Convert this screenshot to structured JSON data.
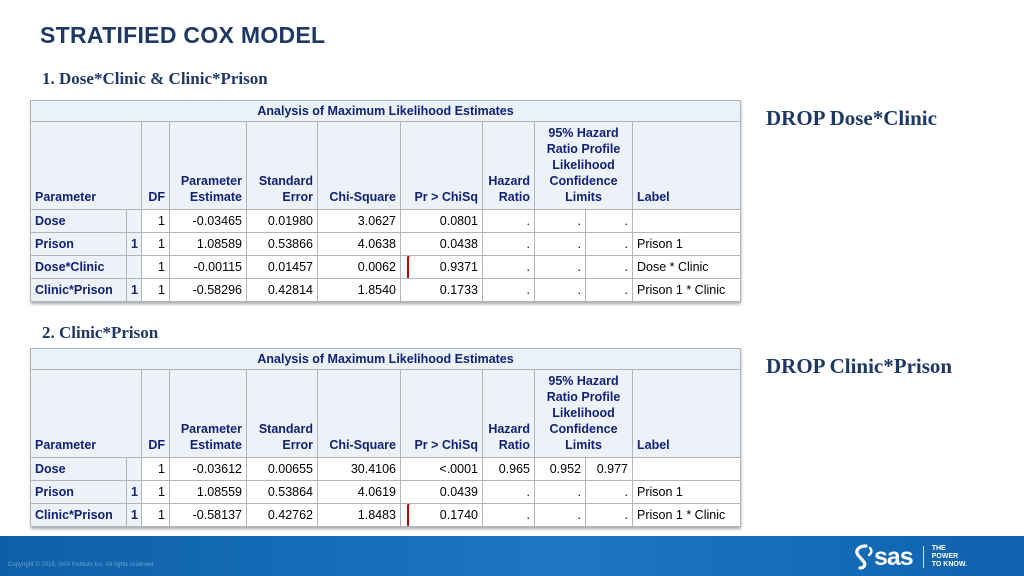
{
  "title": "STRATIFIED COX MODEL",
  "section1": {
    "heading": "1. Dose*Clinic & Clinic*Prison",
    "drop_note": "DROP Dose*Clinic",
    "caption": "Analysis of Maximum Likelihood Estimates",
    "headers": {
      "parameter": "Parameter",
      "df": "DF",
      "estimate": "Parameter Estimate",
      "stderr": "Standard Error",
      "chisq": "Chi-Square",
      "prob": "Pr > ChiSq",
      "hr": "Hazard Ratio",
      "ci": "95% Hazard Ratio Profile Likelihood Confidence Limits",
      "label": "Label"
    },
    "rows": [
      {
        "param": "Dose",
        "level": "",
        "df": "1",
        "estimate": "-0.03465",
        "stderr": "0.01980",
        "chisq": "3.0627",
        "prob": "0.0801",
        "hr": ".",
        "lcl": ".",
        "ucl": ".",
        "label": ""
      },
      {
        "param": "Prison",
        "level": "1",
        "df": "1",
        "estimate": "1.08589",
        "stderr": "0.53866",
        "chisq": "4.0638",
        "prob": "0.0438",
        "hr": ".",
        "lcl": ".",
        "ucl": ".",
        "label": "Prison 1"
      },
      {
        "param": "Dose*Clinic",
        "level": "",
        "df": "1",
        "estimate": "-0.00115",
        "stderr": "0.01457",
        "chisq": "0.0062",
        "prob": "0.9371",
        "hr": ".",
        "lcl": ".",
        "ucl": ".",
        "label": "Dose * Clinic"
      },
      {
        "param": "Clinic*Prison",
        "level": "1",
        "df": "1",
        "estimate": "-0.58296",
        "stderr": "0.42814",
        "chisq": "1.8540",
        "prob": "0.1733",
        "hr": ".",
        "lcl": ".",
        "ucl": ".",
        "label": "Prison 1 * Clinic"
      }
    ]
  },
  "section2": {
    "heading": "2. Clinic*Prison",
    "drop_note": "DROP Clinic*Prison",
    "caption": "Analysis of Maximum Likelihood Estimates",
    "headers": {
      "parameter": "Parameter",
      "df": "DF",
      "estimate": "Parameter Estimate",
      "stderr": "Standard Error",
      "chisq": "Chi-Square",
      "prob": "Pr > ChiSq",
      "hr": "Hazard Ratio",
      "ci": "95% Hazard Ratio Profile Likelihood Confidence Limits",
      "label": "Label"
    },
    "rows": [
      {
        "param": "Dose",
        "level": "",
        "df": "1",
        "estimate": "-0.03612",
        "stderr": "0.00655",
        "chisq": "30.4106",
        "prob": "<.0001",
        "hr": "0.965",
        "lcl": "0.952",
        "ucl": "0.977",
        "label": ""
      },
      {
        "param": "Prison",
        "level": "1",
        "df": "1",
        "estimate": "1.08559",
        "stderr": "0.53864",
        "chisq": "4.0619",
        "prob": "0.0439",
        "hr": ".",
        "lcl": ".",
        "ucl": ".",
        "label": "Prison 1"
      },
      {
        "param": "Clinic*Prison",
        "level": "1",
        "df": "1",
        "estimate": "-0.58137",
        "stderr": "0.42762",
        "chisq": "1.8483",
        "prob": "0.1740",
        "hr": ".",
        "lcl": ".",
        "ucl": ".",
        "label": "Prison 1 * Clinic"
      }
    ]
  },
  "footer": {
    "copyright": "Copyright © 2016, SAS Institute Inc. All rights reserved.",
    "logo_text": "sas",
    "tagline": [
      "THE",
      "POWER",
      "TO KNOW."
    ]
  },
  "colors": {
    "title": "#1f3864",
    "table_text": "#112277",
    "highlight": "#c00000",
    "footer": "#1565b3"
  }
}
